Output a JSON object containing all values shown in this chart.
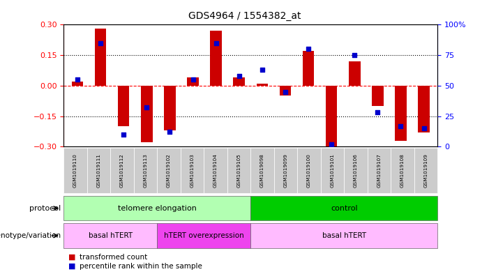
{
  "title": "GDS4964 / 1554382_at",
  "samples": [
    "GSM1019110",
    "GSM1019111",
    "GSM1019112",
    "GSM1019113",
    "GSM1019102",
    "GSM1019103",
    "GSM1019104",
    "GSM1019105",
    "GSM1019098",
    "GSM1019099",
    "GSM1019100",
    "GSM1019101",
    "GSM1019106",
    "GSM1019107",
    "GSM1019108",
    "GSM1019109"
  ],
  "transformed_count": [
    0.02,
    0.28,
    -0.2,
    -0.28,
    -0.22,
    0.04,
    0.27,
    0.04,
    0.01,
    -0.05,
    0.17,
    -0.3,
    0.12,
    -0.1,
    -0.27,
    -0.23
  ],
  "percentile_rank": [
    55,
    85,
    10,
    32,
    12,
    55,
    85,
    58,
    63,
    45,
    80,
    2,
    75,
    28,
    17,
    15
  ],
  "protocol_groups": [
    {
      "label": "telomere elongation",
      "start": 0,
      "end": 7,
      "color": "#b2ffb2"
    },
    {
      "label": "control",
      "start": 8,
      "end": 15,
      "color": "#00cc00"
    }
  ],
  "genotype_groups": [
    {
      "label": "basal hTERT",
      "start": 0,
      "end": 3,
      "color": "#ffbbff"
    },
    {
      "label": "hTERT overexpression",
      "start": 4,
      "end": 7,
      "color": "#ee44ee"
    },
    {
      "label": "basal hTERT",
      "start": 8,
      "end": 15,
      "color": "#ffbbff"
    }
  ],
  "bar_color": "#cc0000",
  "dot_color": "#0000cc",
  "ylim": [
    -0.3,
    0.3
  ],
  "y2lim": [
    0,
    100
  ],
  "yticks": [
    -0.3,
    -0.15,
    0.0,
    0.15,
    0.3
  ],
  "y2ticks": [
    0,
    25,
    50,
    75,
    100
  ],
  "bar_width": 0.5,
  "sample_bg_color": "#cccccc",
  "fig_bg": "#ffffff"
}
